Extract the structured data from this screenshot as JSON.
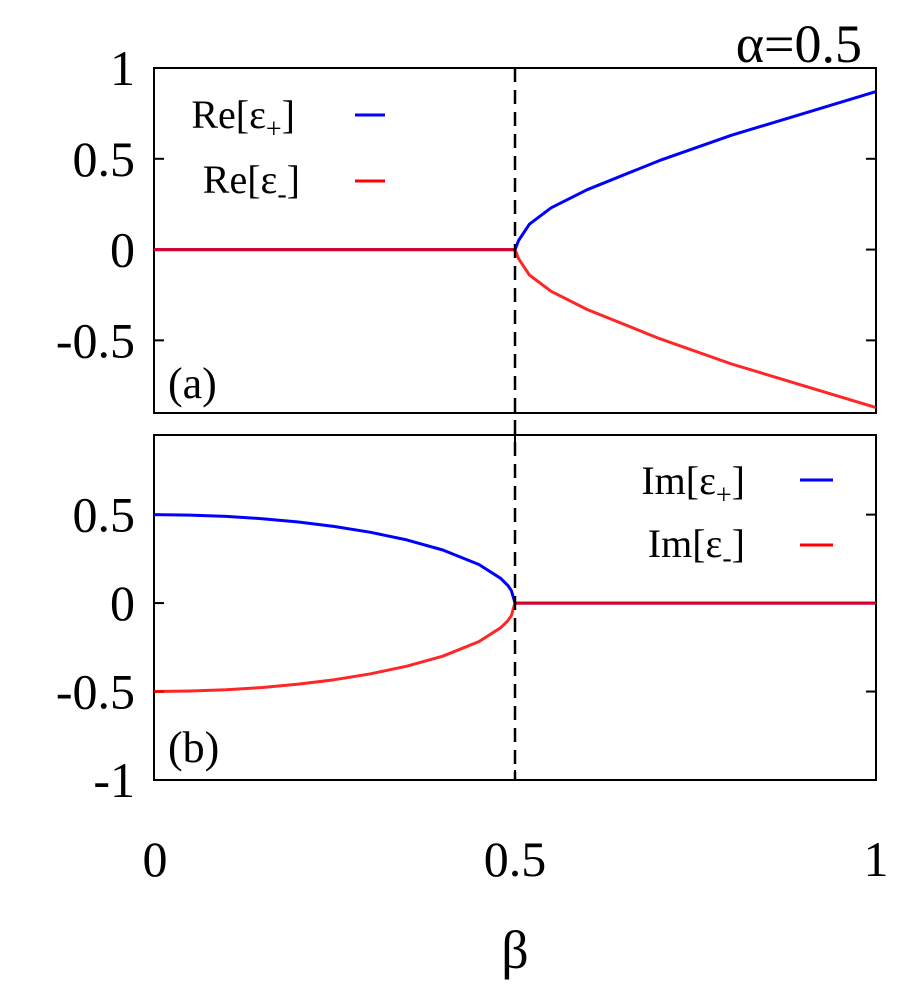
{
  "figure": {
    "title": "α=0.5",
    "xlabel": "β"
  },
  "chart_data": [
    {
      "type": "line",
      "panel": "(a)",
      "xlabel": "β",
      "ylabel": "",
      "xlim": [
        0,
        1
      ],
      "ylim": [
        -0.9,
        1.0
      ],
      "x_ticks": [
        "0",
        "0.5",
        "1"
      ],
      "y_ticks": [
        "1",
        "0.5",
        "0",
        "-0.5"
      ],
      "y_tick_values": [
        1,
        0.5,
        0,
        -0.5
      ],
      "vline_x": 0.5,
      "legend_position": "top-left",
      "series": [
        {
          "name": "Re[ε+]",
          "name_main": "Re[ε",
          "name_sub": "+",
          "name_end": "]",
          "color": "#0000ff",
          "x": [
            0,
            0.1,
            0.2,
            0.3,
            0.4,
            0.5,
            0.505,
            0.52,
            0.55,
            0.6,
            0.7,
            0.8,
            0.9,
            1.0
          ],
          "values": [
            0,
            0,
            0,
            0,
            0,
            0,
            0.05,
            0.14,
            0.23,
            0.33,
            0.49,
            0.63,
            0.75,
            0.87
          ]
        },
        {
          "name": "Re[ε-]",
          "name_main": "Re[ε",
          "name_sub": "-",
          "name_end": "]",
          "color": "#ff0000",
          "x": [
            0,
            0.1,
            0.2,
            0.3,
            0.4,
            0.5,
            0.505,
            0.52,
            0.55,
            0.6,
            0.7,
            0.8,
            0.9,
            1.0
          ],
          "values": [
            0,
            0,
            0,
            0,
            0,
            0,
            -0.05,
            -0.14,
            -0.23,
            -0.33,
            -0.49,
            -0.63,
            -0.75,
            -0.87
          ]
        }
      ]
    },
    {
      "type": "line",
      "panel": "(b)",
      "xlabel": "β",
      "ylabel": "",
      "xlim": [
        0,
        1
      ],
      "ylim": [
        -1.0,
        0.95
      ],
      "x_ticks": [
        "0",
        "0.5",
        "1"
      ],
      "y_ticks": [
        "0.5",
        "0",
        "-0.5",
        "-1"
      ],
      "y_tick_values": [
        0.5,
        0,
        -0.5,
        -1
      ],
      "vline_x": 0.5,
      "legend_position": "top-right",
      "series": [
        {
          "name": "Im[ε+]",
          "name_main": "Im[ε",
          "name_sub": "+",
          "name_end": "]",
          "color": "#0000ff",
          "x": [
            0,
            0.05,
            0.1,
            0.15,
            0.2,
            0.25,
            0.3,
            0.35,
            0.4,
            0.45,
            0.48,
            0.49,
            0.495,
            0.5,
            0.6,
            0.7,
            0.8,
            0.9,
            1.0
          ],
          "values": [
            0.5,
            0.497,
            0.49,
            0.477,
            0.458,
            0.433,
            0.4,
            0.357,
            0.3,
            0.218,
            0.14,
            0.1,
            0.07,
            0,
            0,
            0,
            0,
            0,
            0
          ]
        },
        {
          "name": "Im[ε-]",
          "name_main": "Im[ε",
          "name_sub": "-",
          "name_end": "]",
          "color": "#ff0000",
          "x": [
            0,
            0.05,
            0.1,
            0.15,
            0.2,
            0.25,
            0.3,
            0.35,
            0.4,
            0.45,
            0.48,
            0.49,
            0.495,
            0.5,
            0.6,
            0.7,
            0.8,
            0.9,
            1.0
          ],
          "values": [
            -0.5,
            -0.497,
            -0.49,
            -0.477,
            -0.458,
            -0.433,
            -0.4,
            -0.357,
            -0.3,
            -0.218,
            -0.14,
            -0.1,
            -0.07,
            0,
            0,
            0,
            0,
            0,
            0
          ]
        }
      ]
    }
  ]
}
